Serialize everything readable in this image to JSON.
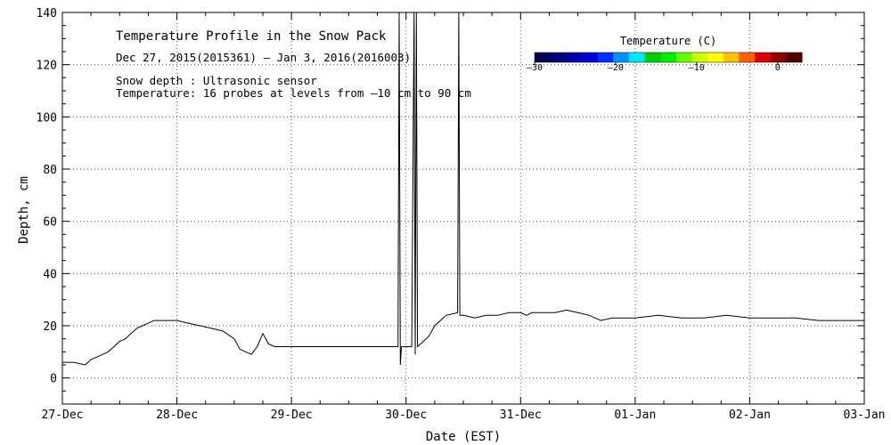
{
  "chart_data": {
    "type": "line",
    "title": "Temperature Profile in the Snow Pack",
    "subtitle": "Dec 27, 2015(2015361) – Jan  3, 2016(2016003)",
    "annotations": [
      "Snow depth : Ultrasonic sensor",
      "Temperature: 16 probes at levels from –10 cm to 90 cm"
    ],
    "xlabel": "Date (EST)",
    "ylabel": "Depth, cm",
    "ylim": [
      -10,
      140
    ],
    "xlim": [
      0,
      7
    ],
    "x_tick_labels": [
      "27-Dec",
      "28-Dec",
      "29-Dec",
      "30-Dec",
      "31-Dec",
      "01-Jan",
      "02-Jan",
      "03-Jan"
    ],
    "y_ticks": [
      0,
      20,
      40,
      60,
      80,
      100,
      120,
      140
    ],
    "grid": true,
    "colorbar": {
      "title": "Temperature (C)",
      "tick_values": [
        -30,
        -20,
        -10,
        0
      ],
      "tick_labels": [
        "–30",
        "–20",
        "–10",
        "0"
      ],
      "range": [
        -30,
        3
      ],
      "colors": [
        "#000050",
        "#00007a",
        "#0000a8",
        "#0000d8",
        "#0030ff",
        "#0090ff",
        "#00e8ff",
        "#00cc00",
        "#00ee00",
        "#66ff00",
        "#ccff00",
        "#ffff00",
        "#ffc000",
        "#ff6000",
        "#e00000",
        "#900000",
        "#500000"
      ]
    },
    "series": [
      {
        "line_color": "#000000",
        "x": [
          0.0,
          0.1,
          0.2,
          0.25,
          0.3,
          0.35,
          0.4,
          0.45,
          0.5,
          0.55,
          0.6,
          0.65,
          0.7,
          0.8,
          0.9,
          1.0,
          1.1,
          1.2,
          1.3,
          1.4,
          1.5,
          1.55,
          1.6,
          1.65,
          1.7,
          1.75,
          1.8,
          1.85,
          1.9,
          2.0,
          2.2,
          2.4,
          2.6,
          2.8,
          2.93,
          2.94,
          2.95,
          2.96,
          3.0,
          3.05,
          3.07,
          3.08,
          3.09,
          3.1,
          3.15,
          3.2,
          3.25,
          3.35,
          3.45,
          3.46,
          3.47,
          3.5,
          3.6,
          3.7,
          3.8,
          3.9,
          4.0,
          4.05,
          4.1,
          4.2,
          4.3,
          4.4,
          4.5,
          4.6,
          4.7,
          4.8,
          4.9,
          5.0,
          5.2,
          5.4,
          5.6,
          5.8,
          6.0,
          6.2,
          6.4,
          6.6,
          6.8,
          7.0
        ],
        "y": [
          6,
          6,
          5,
          7,
          8,
          9,
          10,
          12,
          14,
          15,
          17,
          19,
          20,
          22,
          22,
          22,
          21,
          20,
          19,
          18,
          15,
          11,
          10,
          9,
          12,
          17,
          13,
          12,
          12,
          12,
          12,
          12,
          12,
          12,
          12,
          140,
          5,
          12,
          12,
          12,
          140,
          9,
          140,
          12,
          14,
          16,
          20,
          24,
          25,
          140,
          24,
          24,
          23,
          24,
          24,
          25,
          25,
          24,
          25,
          25,
          25,
          26,
          25,
          24,
          22,
          23,
          23,
          23,
          24,
          23,
          23,
          24,
          23,
          23,
          23,
          22,
          22,
          22
        ]
      }
    ]
  }
}
